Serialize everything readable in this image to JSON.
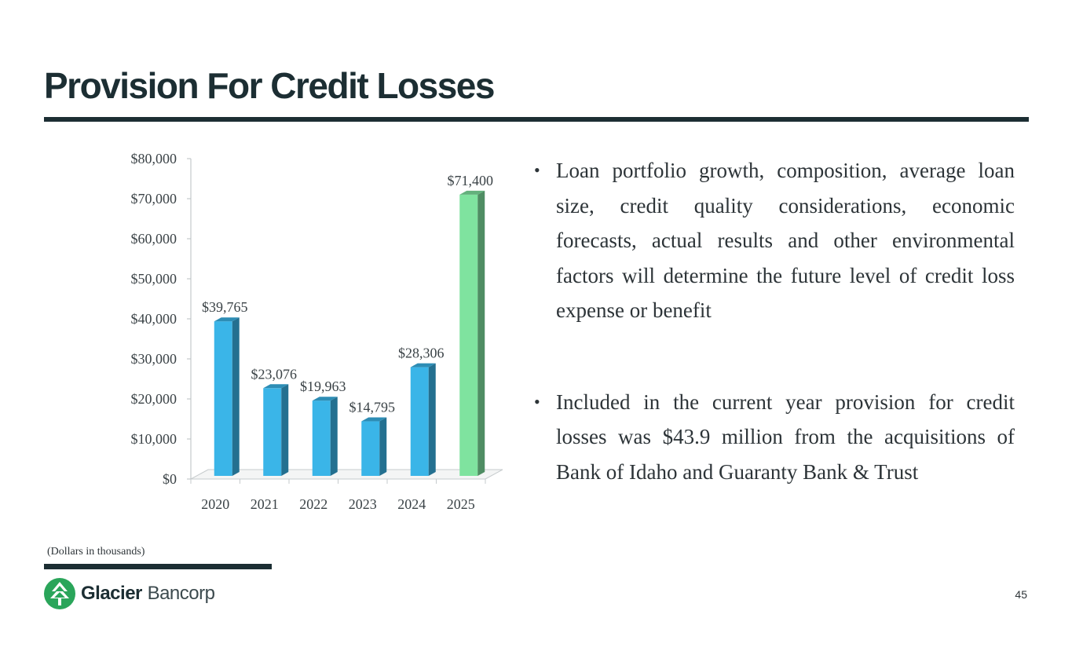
{
  "slide": {
    "title": "Provision For Credit Losses",
    "footnote": "(Dollars in thousands)",
    "page_number": "45"
  },
  "bullets": [
    {
      "text": "Loan portfolio growth, composition, average loan size, credit quality considerations, economic forecasts, actual results and other environmental factors will determine the future level of credit loss expense or benefit"
    },
    {
      "text": "Included in the current year provision for credit losses was $43.9 million from the acquisitions of Bank of Idaho and Guaranty Bank & Trust"
    }
  ],
  "logo": {
    "bold": "Glacier",
    "light": "Bancorp",
    "icon": "glacier-tree-icon"
  },
  "colors": {
    "bar": "#3ab5e8",
    "bar_highlight": "#7fe39f",
    "title": "#1c2e33"
  },
  "chart_data": {
    "type": "bar",
    "categories": [
      "2020",
      "2021",
      "2022",
      "2023",
      "2024",
      "2025"
    ],
    "values": [
      39765,
      23076,
      19963,
      14795,
      28306,
      71400
    ],
    "data_labels": [
      "$39,765",
      "$23,076",
      "$19,963",
      "$14,795",
      "$28,306",
      "$71,400"
    ],
    "highlight_index": 5,
    "ylim": [
      0,
      80000
    ],
    "y_ticks": [
      0,
      10000,
      20000,
      30000,
      40000,
      50000,
      60000,
      70000,
      80000
    ],
    "y_tick_labels": [
      "$0",
      "$10,000",
      "$20,000",
      "$30,000",
      "$40,000",
      "$50,000",
      "$60,000",
      "$70,000",
      "$80,000"
    ],
    "title": "",
    "xlabel": "",
    "ylabel": "",
    "grid": false,
    "legend": "none",
    "style": "3d-column"
  }
}
